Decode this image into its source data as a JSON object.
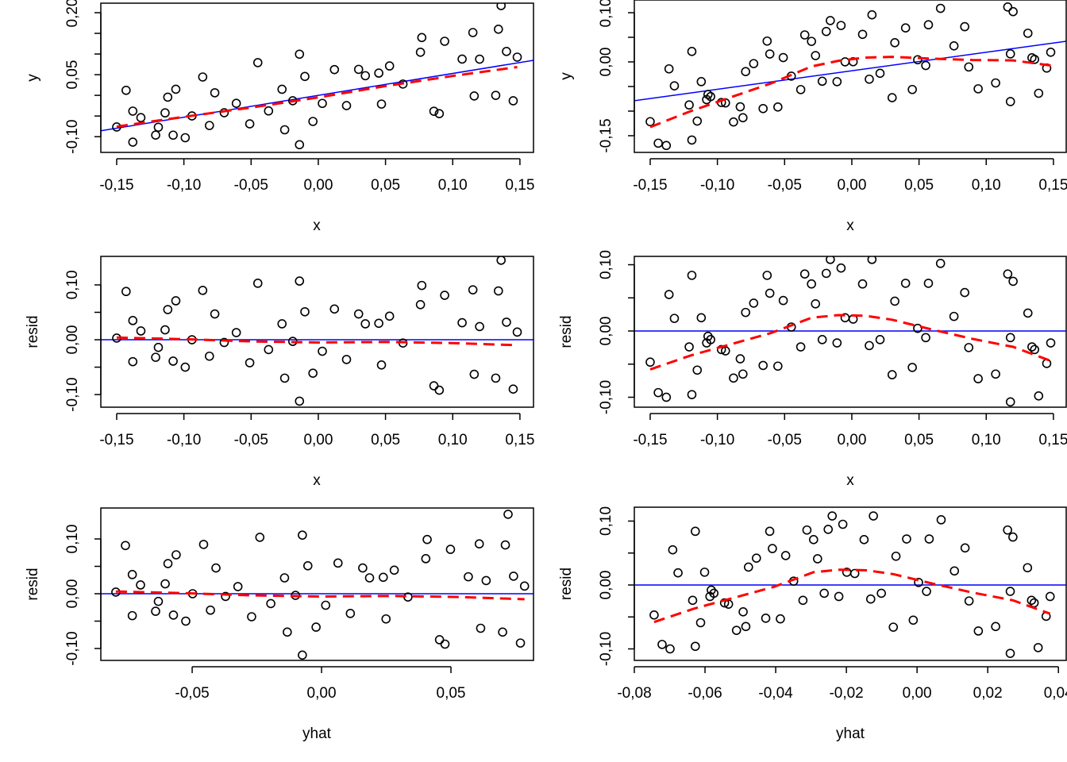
{
  "chart_data": [
    {
      "type": "scatter",
      "dataset": "left",
      "xvar": "x",
      "yvar": "y",
      "xlabel": "x",
      "ylabel": "y",
      "xlim": [
        -0.1618,
        0.1601
      ],
      "ylim": [
        -0.138,
        0.223
      ],
      "x_ticks": [
        -0.15,
        -0.1,
        -0.05,
        0,
        0.05,
        0.1,
        0.15
      ],
      "x_tick_labels": [
        "-0,15",
        "-0,10",
        "-0,05",
        "0,00",
        "0,05",
        "0,10",
        "0,15"
      ],
      "y_ticks": [
        -0.1,
        -0.05,
        0,
        0.05,
        0.1,
        0.15,
        0.2
      ],
      "y_tick_labels": [
        "-0,10",
        "",
        "",
        "0,05",
        "",
        "",
        "0,20"
      ],
      "ref_line": "fit",
      "grid": false
    },
    {
      "type": "scatter",
      "dataset": "right",
      "xvar": "x",
      "yvar": "y",
      "xlabel": "x",
      "ylabel": "y",
      "xlim": [
        -0.1618,
        0.1595
      ],
      "ylim": [
        -0.1839,
        0.1258
      ],
      "x_ticks": [
        -0.15,
        -0.1,
        -0.05,
        0,
        0.05,
        0.1,
        0.15
      ],
      "x_tick_labels": [
        "-0,15",
        "-0,10",
        "-0,05",
        "0,00",
        "0,05",
        "0,10",
        "0,15"
      ],
      "y_ticks": [
        -0.15,
        -0.1,
        -0.05,
        0,
        0.05,
        0.1
      ],
      "y_tick_labels": [
        "-0,15",
        "",
        "",
        "0,00",
        "",
        "0,10"
      ],
      "ref_line": "fit",
      "grid": false
    },
    {
      "type": "scatter",
      "dataset": "left",
      "xvar": "x",
      "yvar": "resid",
      "xlabel": "x",
      "ylabel": "resid",
      "xlim": [
        -0.1618,
        0.1601
      ],
      "ylim": [
        -0.123,
        0.152
      ],
      "x_ticks": [
        -0.15,
        -0.1,
        -0.05,
        0,
        0.05,
        0.1,
        0.15
      ],
      "x_tick_labels": [
        "-0,15",
        "-0,10",
        "-0,05",
        "0,00",
        "0,05",
        "0,10",
        "0,15"
      ],
      "y_ticks": [
        -0.1,
        -0.05,
        0,
        0.05,
        0.1
      ],
      "y_tick_labels": [
        "-0,10",
        "",
        "0,00",
        "",
        "0,10"
      ],
      "ref_line": "zero",
      "grid": false
    },
    {
      "type": "scatter",
      "dataset": "right",
      "xvar": "x",
      "yvar": "resid",
      "xlabel": "x",
      "ylabel": "resid",
      "xlim": [
        -0.1618,
        0.1595
      ],
      "ylim": [
        -0.115,
        0.1126
      ],
      "x_ticks": [
        -0.15,
        -0.1,
        -0.05,
        0,
        0.05,
        0.1,
        0.15
      ],
      "x_tick_labels": [
        "-0,15",
        "-0,10",
        "-0,05",
        "0,00",
        "0,05",
        "0,10",
        "0,15"
      ],
      "y_ticks": [
        -0.1,
        -0.05,
        0,
        0.05,
        0.1
      ],
      "y_tick_labels": [
        "-0,10",
        "",
        "0,00",
        "",
        "0,10"
      ],
      "ref_line": "zero",
      "grid": false
    },
    {
      "type": "scatter",
      "dataset": "left",
      "xvar": "yhat",
      "yvar": "resid",
      "xlabel": "yhat",
      "ylabel": "resid",
      "xlim": [
        -0.0853,
        0.0819
      ],
      "ylim": [
        -0.1217,
        0.1565
      ],
      "x_ticks": [
        -0.05,
        0,
        0.05
      ],
      "x_tick_labels": [
        "-0,05",
        "0,00",
        "0,05"
      ],
      "y_ticks": [
        -0.1,
        -0.05,
        0,
        0.05,
        0.1
      ],
      "y_tick_labels": [
        "-0,10",
        "",
        "0,00",
        "",
        "0,10"
      ],
      "ref_line": "zero",
      "grid": false
    },
    {
      "type": "scatter",
      "dataset": "right",
      "xvar": "yhat",
      "yvar": "resid",
      "xlabel": "yhat",
      "ylabel": "resid",
      "xlim": [
        -0.08,
        0.0422
      ],
      "ylim": [
        -0.118,
        0.1217
      ],
      "x_ticks": [
        -0.08,
        -0.06,
        -0.04,
        -0.02,
        0,
        0.02,
        0.04
      ],
      "x_tick_labels": [
        "-0,08",
        "-0,06",
        "-0,04",
        "-0,02",
        "0,00",
        "0,02",
        "0,04"
      ],
      "y_ticks": [
        -0.1,
        -0.05,
        0,
        0.05,
        0.1
      ],
      "y_tick_labels": [
        "-0,10",
        "",
        "0,00",
        "",
        "0,10"
      ],
      "ref_line": "zero",
      "grid": false
    }
  ],
  "datasets": {
    "left": {
      "x": [
        -0.15,
        -0.143,
        -0.138,
        -0.138,
        -0.132,
        -0.121,
        -0.119,
        -0.114,
        -0.112,
        -0.108,
        -0.106,
        -0.099,
        -0.094,
        -0.086,
        -0.081,
        -0.077,
        -0.07,
        -0.061,
        -0.051,
        -0.045,
        -0.037,
        -0.027,
        -0.025,
        -0.019,
        -0.014,
        -0.014,
        -0.01,
        -0.004,
        0.003,
        0.012,
        0.021,
        0.03,
        0.035,
        0.045,
        0.047,
        0.053,
        0.063,
        0.076,
        0.077,
        0.086,
        0.09,
        0.094,
        0.107,
        0.115,
        0.116,
        0.12,
        0.132,
        0.134,
        0.136,
        0.14,
        0.145,
        0.148
      ],
      "resid": [
        0.003,
        0.088,
        0.035,
        -0.04,
        0.016,
        -0.032,
        -0.014,
        0.018,
        0.055,
        -0.039,
        0.071,
        -0.05,
        0.0,
        0.09,
        -0.03,
        0.047,
        -0.005,
        0.013,
        -0.042,
        0.103,
        -0.018,
        0.029,
        -0.07,
        -0.003,
        -0.112,
        0.107,
        0.051,
        -0.061,
        -0.021,
        0.056,
        -0.036,
        0.047,
        0.029,
        0.03,
        -0.046,
        0.043,
        -0.006,
        0.064,
        0.099,
        -0.084,
        -0.092,
        0.081,
        0.031,
        0.091,
        -0.063,
        0.024,
        -0.07,
        0.089,
        0.145,
        0.032,
        -0.09,
        0.014
      ],
      "fit": {
        "intercept": 0.0,
        "slope": 0.53,
        "color": "#0000ff"
      },
      "loess": {
        "x": [
          -0.15,
          -0.1,
          -0.05,
          0,
          0.05,
          0.1,
          0.148
        ],
        "resid": [
          0.004,
          0.001,
          -0.003,
          -0.005,
          -0.004,
          -0.006,
          -0.01
        ],
        "color": "#ff0000"
      }
    },
    "right": {
      "x": [
        -0.15,
        -0.144,
        -0.138,
        -0.136,
        -0.132,
        -0.121,
        -0.119,
        -0.119,
        -0.115,
        -0.112,
        -0.108,
        -0.107,
        -0.105,
        -0.097,
        -0.094,
        -0.088,
        -0.083,
        -0.081,
        -0.079,
        -0.073,
        -0.066,
        -0.063,
        -0.061,
        -0.055,
        -0.051,
        -0.045,
        -0.038,
        -0.035,
        -0.03,
        -0.027,
        -0.022,
        -0.019,
        -0.016,
        -0.011,
        -0.008,
        -0.005,
        0.001,
        0.008,
        0.013,
        0.015,
        0.021,
        0.03,
        0.032,
        0.04,
        0.045,
        0.049,
        0.055,
        0.057,
        0.066,
        0.076,
        0.084,
        0.087,
        0.094,
        0.107,
        0.116,
        0.118,
        0.12,
        0.118,
        0.131,
        0.134,
        0.136,
        0.139,
        0.145,
        0.148
      ],
      "resid": [
        -0.047,
        -0.093,
        -0.1,
        0.055,
        0.019,
        -0.024,
        0.084,
        -0.096,
        -0.059,
        0.02,
        -0.018,
        -0.008,
        -0.013,
        -0.028,
        -0.03,
        -0.071,
        -0.042,
        -0.065,
        0.028,
        0.042,
        -0.052,
        0.084,
        0.057,
        -0.053,
        0.046,
        0.006,
        -0.024,
        0.086,
        0.071,
        0.041,
        -0.013,
        0.087,
        0.108,
        -0.018,
        0.095,
        0.02,
        0.018,
        0.071,
        -0.022,
        0.108,
        -0.013,
        -0.066,
        0.045,
        0.072,
        -0.055,
        0.004,
        -0.01,
        0.072,
        0.102,
        0.022,
        0.058,
        -0.025,
        -0.072,
        -0.065,
        0.086,
        -0.01,
        0.075,
        -0.107,
        0.027,
        -0.024,
        -0.028,
        -0.098,
        -0.049,
        -0.018
      ],
      "fit": {
        "intercept": -0.018,
        "slope": 0.376,
        "color": "#0000ff"
      },
      "loess": {
        "x": [
          -0.15,
          -0.12,
          -0.09,
          -0.06,
          -0.03,
          -0.01,
          0.01,
          0.03,
          0.06,
          0.09,
          0.12,
          0.148
        ],
        "resid": [
          -0.058,
          -0.037,
          -0.02,
          -0.003,
          0.02,
          0.024,
          0.023,
          0.017,
          0.002,
          -0.012,
          -0.024,
          -0.045
        ],
        "color": "#ff0000"
      }
    }
  }
}
